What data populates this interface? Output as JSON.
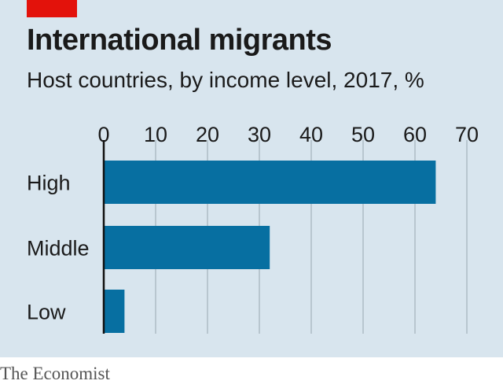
{
  "colors": {
    "bar": "#076fa1",
    "panel": "#d8e5ee",
    "accent": "#e3120b",
    "grid": "#b8c6cf",
    "text": "#1a1a1a"
  },
  "chart_data": {
    "type": "bar",
    "orientation": "horizontal",
    "title": "International migrants",
    "subtitle": "Host countries, by income level, 2017, %",
    "categories": [
      "High",
      "Middle",
      "Low"
    ],
    "values": [
      64,
      32,
      4
    ],
    "xlim": [
      0,
      70
    ],
    "xticks": [
      "0",
      "10",
      "20",
      "30",
      "40",
      "50",
      "60",
      "70"
    ],
    "xtick_values": [
      0,
      10,
      20,
      30,
      40,
      50,
      60,
      70
    ],
    "grid": true,
    "axis_position": "top"
  },
  "source": "The Economist"
}
